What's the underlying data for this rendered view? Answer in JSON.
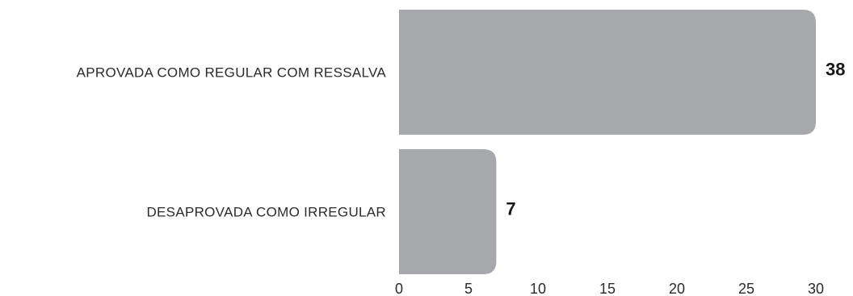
{
  "chart_data": {
    "type": "bar",
    "orientation": "horizontal",
    "title": "",
    "xlabel": "",
    "ylabel": "",
    "categories": [
      "APROVADA COMO REGULAR COM RESSALVA",
      "DESAPROVADA COMO IRREGULAR"
    ],
    "values": [
      38,
      7
    ],
    "data_labels": [
      "38",
      "7"
    ],
    "xlim": [
      0,
      30
    ],
    "xticks": [
      0,
      5,
      10,
      15,
      20,
      25,
      30
    ],
    "grid": false,
    "legend": "none",
    "bar_color": "#a7a8ab",
    "text_color": "#2b2b2b"
  }
}
